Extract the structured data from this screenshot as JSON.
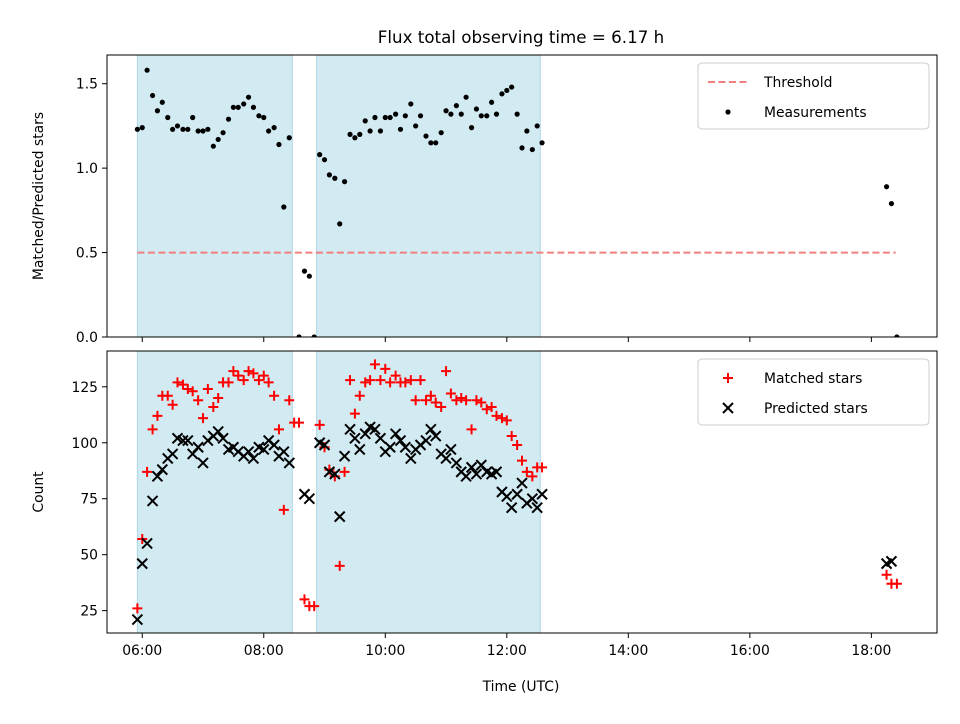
{
  "figure": {
    "title": "Flux total observing time = 6.17 h",
    "xlabel": "Time (UTC)",
    "xticks": [
      "06:00",
      "08:00",
      "10:00",
      "12:00",
      "14:00",
      "16:00",
      "18:00"
    ]
  },
  "chart_data": [
    {
      "type": "scatter",
      "ylabel": "Matched/Predicted stars",
      "xlim": [
        5.42,
        19.08
      ],
      "ylim": [
        0,
        1.67
      ],
      "yticks": [
        "0.0",
        "0.5",
        "1.0",
        "1.5"
      ],
      "shaded_intervals": [
        [
          5.92,
          8.47
        ],
        [
          8.87,
          12.55
        ]
      ],
      "shade_color": "#add8e6",
      "threshold": {
        "name": "Threshold",
        "value": 0.5,
        "x_range": [
          5.92,
          18.4
        ],
        "color": "#f08080"
      },
      "legend_position": "top-right",
      "series": [
        {
          "name": "Measurements",
          "color": "#000000",
          "marker": "dot",
          "points": [
            [
              5.92,
              1.23
            ],
            [
              6.0,
              1.24
            ],
            [
              6.08,
              1.58
            ],
            [
              6.17,
              1.43
            ],
            [
              6.25,
              1.34
            ],
            [
              6.33,
              1.39
            ],
            [
              6.42,
              1.3
            ],
            [
              6.5,
              1.23
            ],
            [
              6.58,
              1.25
            ],
            [
              6.67,
              1.23
            ],
            [
              6.75,
              1.23
            ],
            [
              6.83,
              1.3
            ],
            [
              6.92,
              1.22
            ],
            [
              7.0,
              1.22
            ],
            [
              7.08,
              1.23
            ],
            [
              7.17,
              1.13
            ],
            [
              7.25,
              1.17
            ],
            [
              7.33,
              1.21
            ],
            [
              7.42,
              1.29
            ],
            [
              7.5,
              1.36
            ],
            [
              7.58,
              1.36
            ],
            [
              7.67,
              1.38
            ],
            [
              7.75,
              1.42
            ],
            [
              7.83,
              1.36
            ],
            [
              7.92,
              1.31
            ],
            [
              8.0,
              1.3
            ],
            [
              8.08,
              1.22
            ],
            [
              8.17,
              1.24
            ],
            [
              8.25,
              1.14
            ],
            [
              8.33,
              0.77
            ],
            [
              8.42,
              1.18
            ],
            [
              8.58,
              0.0
            ],
            [
              8.67,
              0.39
            ],
            [
              8.75,
              0.36
            ],
            [
              8.83,
              0.0
            ],
            [
              8.92,
              1.08
            ],
            [
              9.0,
              1.05
            ],
            [
              9.08,
              0.96
            ],
            [
              9.17,
              0.94
            ],
            [
              9.25,
              0.67
            ],
            [
              9.33,
              0.92
            ],
            [
              9.42,
              1.2
            ],
            [
              9.5,
              1.18
            ],
            [
              9.58,
              1.2
            ],
            [
              9.67,
              1.28
            ],
            [
              9.75,
              1.22
            ],
            [
              9.83,
              1.3
            ],
            [
              9.92,
              1.22
            ],
            [
              10.0,
              1.3
            ],
            [
              10.08,
              1.3
            ],
            [
              10.17,
              1.32
            ],
            [
              10.25,
              1.23
            ],
            [
              10.33,
              1.31
            ],
            [
              10.42,
              1.38
            ],
            [
              10.5,
              1.25
            ],
            [
              10.58,
              1.31
            ],
            [
              10.67,
              1.19
            ],
            [
              10.75,
              1.15
            ],
            [
              10.83,
              1.15
            ],
            [
              10.92,
              1.21
            ],
            [
              11.0,
              1.34
            ],
            [
              11.08,
              1.32
            ],
            [
              11.17,
              1.37
            ],
            [
              11.25,
              1.32
            ],
            [
              11.33,
              1.42
            ],
            [
              11.42,
              1.24
            ],
            [
              11.5,
              1.35
            ],
            [
              11.58,
              1.31
            ],
            [
              11.67,
              1.31
            ],
            [
              11.75,
              1.39
            ],
            [
              11.83,
              1.32
            ],
            [
              11.92,
              1.44
            ],
            [
              12.0,
              1.46
            ],
            [
              12.08,
              1.48
            ],
            [
              12.17,
              1.32
            ],
            [
              12.25,
              1.12
            ],
            [
              12.33,
              1.22
            ],
            [
              12.42,
              1.11
            ],
            [
              12.5,
              1.25
            ],
            [
              12.58,
              1.15
            ],
            [
              18.25,
              0.89
            ],
            [
              18.33,
              0.79
            ],
            [
              18.42,
              0.0
            ]
          ]
        }
      ]
    },
    {
      "type": "scatter",
      "ylabel": "Count",
      "xlim": [
        5.42,
        19.08
      ],
      "ylim": [
        15,
        141
      ],
      "yticks": [
        "25",
        "50",
        "75",
        "100",
        "125"
      ],
      "shaded_intervals": [
        [
          5.92,
          8.47
        ],
        [
          8.87,
          12.55
        ]
      ],
      "shade_color": "#add8e6",
      "legend_position": "top-right",
      "series": [
        {
          "name": "Matched stars",
          "color": "#ff0000",
          "marker": "plus",
          "points": [
            [
              5.92,
              26
            ],
            [
              6.0,
              57
            ],
            [
              6.08,
              87
            ],
            [
              6.17,
              106
            ],
            [
              6.25,
              112
            ],
            [
              6.33,
              121
            ],
            [
              6.42,
              121
            ],
            [
              6.5,
              117
            ],
            [
              6.58,
              127
            ],
            [
              6.67,
              126
            ],
            [
              6.75,
              124
            ],
            [
              6.83,
              123
            ],
            [
              6.92,
              119
            ],
            [
              7.0,
              111
            ],
            [
              7.08,
              124
            ],
            [
              7.17,
              116
            ],
            [
              7.25,
              120
            ],
            [
              7.33,
              127
            ],
            [
              7.42,
              127
            ],
            [
              7.5,
              132
            ],
            [
              7.58,
              130
            ],
            [
              7.67,
              128
            ],
            [
              7.75,
              132
            ],
            [
              7.83,
              131
            ],
            [
              7.92,
              128
            ],
            [
              8.0,
              130
            ],
            [
              8.08,
              127
            ],
            [
              8.17,
              121
            ],
            [
              8.25,
              106
            ],
            [
              8.33,
              70
            ],
            [
              8.42,
              119
            ],
            [
              8.5,
              109
            ],
            [
              8.58,
              109
            ],
            [
              8.67,
              30
            ],
            [
              8.75,
              27
            ],
            [
              8.83,
              27
            ],
            [
              8.92,
              108
            ],
            [
              9.0,
              98
            ],
            [
              9.08,
              88
            ],
            [
              9.17,
              85
            ],
            [
              9.25,
              45
            ],
            [
              9.33,
              87
            ],
            [
              9.42,
              128
            ],
            [
              9.5,
              113
            ],
            [
              9.58,
              121
            ],
            [
              9.67,
              127
            ],
            [
              9.75,
              128
            ],
            [
              9.83,
              135
            ],
            [
              9.92,
              128
            ],
            [
              10.0,
              133
            ],
            [
              10.08,
              127
            ],
            [
              10.17,
              130
            ],
            [
              10.25,
              127
            ],
            [
              10.33,
              127
            ],
            [
              10.42,
              128
            ],
            [
              10.5,
              119
            ],
            [
              10.58,
              128
            ],
            [
              10.67,
              119
            ],
            [
              10.75,
              121
            ],
            [
              10.83,
              118
            ],
            [
              10.92,
              116
            ],
            [
              11.0,
              132
            ],
            [
              11.08,
              122
            ],
            [
              11.17,
              119
            ],
            [
              11.25,
              120
            ],
            [
              11.33,
              119
            ],
            [
              11.42,
              106
            ],
            [
              11.5,
              119
            ],
            [
              11.58,
              118
            ],
            [
              11.67,
              115
            ],
            [
              11.75,
              116
            ],
            [
              11.83,
              112
            ],
            [
              11.92,
              111
            ],
            [
              12.0,
              110
            ],
            [
              12.08,
              103
            ],
            [
              12.17,
              99
            ],
            [
              12.25,
              92
            ],
            [
              12.33,
              87
            ],
            [
              12.42,
              85
            ],
            [
              12.5,
              89
            ],
            [
              12.58,
              89
            ],
            [
              18.25,
              41
            ],
            [
              18.33,
              37
            ],
            [
              18.42,
              37
            ]
          ]
        },
        {
          "name": "Predicted stars",
          "color": "#000000",
          "marker": "x",
          "points": [
            [
              5.92,
              21
            ],
            [
              6.0,
              46
            ],
            [
              6.08,
              55
            ],
            [
              6.17,
              74
            ],
            [
              6.25,
              85
            ],
            [
              6.33,
              88
            ],
            [
              6.42,
              93
            ],
            [
              6.5,
              95
            ],
            [
              6.58,
              102
            ],
            [
              6.67,
              101
            ],
            [
              6.75,
              101
            ],
            [
              6.83,
              95
            ],
            [
              6.92,
              98
            ],
            [
              7.0,
              91
            ],
            [
              7.08,
              101
            ],
            [
              7.17,
              103
            ],
            [
              7.25,
              105
            ],
            [
              7.33,
              102
            ],
            [
              7.42,
              97
            ],
            [
              7.5,
              98
            ],
            [
              7.58,
              96
            ],
            [
              7.67,
              94
            ],
            [
              7.75,
              96
            ],
            [
              7.83,
              93
            ],
            [
              7.92,
              98
            ],
            [
              8.0,
              97
            ],
            [
              8.08,
              101
            ],
            [
              8.17,
              99
            ],
            [
              8.25,
              94
            ],
            [
              8.33,
              96
            ],
            [
              8.42,
              91
            ],
            [
              8.67,
              77
            ],
            [
              8.75,
              75
            ],
            [
              8.92,
              100
            ],
            [
              9.0,
              99
            ],
            [
              9.08,
              87
            ],
            [
              9.17,
              86
            ],
            [
              9.25,
              67
            ],
            [
              9.33,
              94
            ],
            [
              9.42,
              106
            ],
            [
              9.5,
              102
            ],
            [
              9.58,
              97
            ],
            [
              9.67,
              104
            ],
            [
              9.75,
              107
            ],
            [
              9.83,
              106
            ],
            [
              9.92,
              102
            ],
            [
              10.0,
              96
            ],
            [
              10.08,
              98
            ],
            [
              10.17,
              104
            ],
            [
              10.25,
              101
            ],
            [
              10.33,
              98
            ],
            [
              10.42,
              93
            ],
            [
              10.5,
              97
            ],
            [
              10.58,
              99
            ],
            [
              10.67,
              101
            ],
            [
              10.75,
              106
            ],
            [
              10.83,
              103
            ],
            [
              10.92,
              95
            ],
            [
              11.0,
              93
            ],
            [
              11.08,
              97
            ],
            [
              11.17,
              91
            ],
            [
              11.25,
              87
            ],
            [
              11.33,
              85
            ],
            [
              11.42,
              89
            ],
            [
              11.5,
              86
            ],
            [
              11.58,
              90
            ],
            [
              11.67,
              87
            ],
            [
              11.75,
              86
            ],
            [
              11.83,
              87
            ],
            [
              11.92,
              78
            ],
            [
              12.0,
              76
            ],
            [
              12.08,
              71
            ],
            [
              12.17,
              77
            ],
            [
              12.25,
              82
            ],
            [
              12.33,
              73
            ],
            [
              12.42,
              75
            ],
            [
              12.5,
              71
            ],
            [
              12.58,
              77
            ],
            [
              18.25,
              46
            ],
            [
              18.33,
              47
            ]
          ]
        }
      ]
    }
  ]
}
